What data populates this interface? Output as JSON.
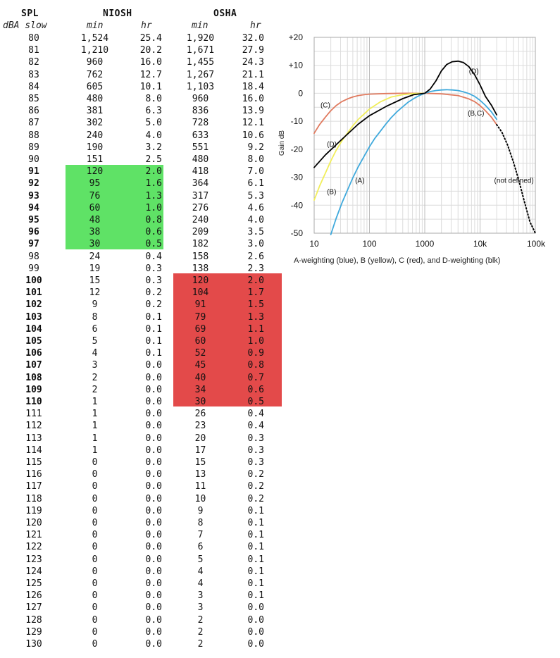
{
  "table": {
    "headers": {
      "spl": "SPL",
      "niosh": "NIOSH",
      "osha": "OSHA"
    },
    "subheaders": {
      "spl": "dBA slow",
      "niosh_min": "min",
      "niosh_hr": "hr",
      "osha_min": "min",
      "osha_hr": "hr"
    },
    "rows": [
      {
        "spl": "80",
        "nmin": "1,524",
        "nhr": "25.4",
        "omin": "1,920",
        "ohr": "32.0",
        "bold": false
      },
      {
        "spl": "81",
        "nmin": "1,210",
        "nhr": "20.2",
        "omin": "1,671",
        "ohr": "27.9",
        "bold": false
      },
      {
        "spl": "82",
        "nmin": "960",
        "nhr": "16.0",
        "omin": "1,455",
        "ohr": "24.3",
        "bold": false
      },
      {
        "spl": "83",
        "nmin": "762",
        "nhr": "12.7",
        "omin": "1,267",
        "ohr": "21.1",
        "bold": false
      },
      {
        "spl": "84",
        "nmin": "605",
        "nhr": "10.1",
        "omin": "1,103",
        "ohr": "18.4",
        "bold": false
      },
      {
        "spl": "85",
        "nmin": "480",
        "nhr": "8.0",
        "omin": "960",
        "ohr": "16.0",
        "bold": false
      },
      {
        "spl": "86",
        "nmin": "381",
        "nhr": "6.3",
        "omin": "836",
        "ohr": "13.9",
        "bold": false
      },
      {
        "spl": "87",
        "nmin": "302",
        "nhr": "5.0",
        "omin": "728",
        "ohr": "12.1",
        "bold": false
      },
      {
        "spl": "88",
        "nmin": "240",
        "nhr": "4.0",
        "omin": "633",
        "ohr": "10.6",
        "bold": false
      },
      {
        "spl": "89",
        "nmin": "190",
        "nhr": "3.2",
        "omin": "551",
        "ohr": "9.2",
        "bold": false
      },
      {
        "spl": "90",
        "nmin": "151",
        "nhr": "2.5",
        "omin": "480",
        "ohr": "8.0",
        "bold": false
      },
      {
        "spl": "91",
        "nmin": "120",
        "nhr": "2.0",
        "omin": "418",
        "ohr": "7.0",
        "bold": true
      },
      {
        "spl": "92",
        "nmin": "95",
        "nhr": "1.6",
        "omin": "364",
        "ohr": "6.1",
        "bold": true
      },
      {
        "spl": "93",
        "nmin": "76",
        "nhr": "1.3",
        "omin": "317",
        "ohr": "5.3",
        "bold": true
      },
      {
        "spl": "94",
        "nmin": "60",
        "nhr": "1.0",
        "omin": "276",
        "ohr": "4.6",
        "bold": true
      },
      {
        "spl": "95",
        "nmin": "48",
        "nhr": "0.8",
        "omin": "240",
        "ohr": "4.0",
        "bold": true
      },
      {
        "spl": "96",
        "nmin": "38",
        "nhr": "0.6",
        "omin": "209",
        "ohr": "3.5",
        "bold": true
      },
      {
        "spl": "97",
        "nmin": "30",
        "nhr": "0.5",
        "omin": "182",
        "ohr": "3.0",
        "bold": true
      },
      {
        "spl": "98",
        "nmin": "24",
        "nhr": "0.4",
        "omin": "158",
        "ohr": "2.6",
        "bold": false
      },
      {
        "spl": "99",
        "nmin": "19",
        "nhr": "0.3",
        "omin": "138",
        "ohr": "2.3",
        "bold": false
      },
      {
        "spl": "100",
        "nmin": "15",
        "nhr": "0.3",
        "omin": "120",
        "ohr": "2.0",
        "bold": true
      },
      {
        "spl": "101",
        "nmin": "12",
        "nhr": "0.2",
        "omin": "104",
        "ohr": "1.7",
        "bold": true
      },
      {
        "spl": "102",
        "nmin": "9",
        "nhr": "0.2",
        "omin": "91",
        "ohr": "1.5",
        "bold": true
      },
      {
        "spl": "103",
        "nmin": "8",
        "nhr": "0.1",
        "omin": "79",
        "ohr": "1.3",
        "bold": true
      },
      {
        "spl": "104",
        "nmin": "6",
        "nhr": "0.1",
        "omin": "69",
        "ohr": "1.1",
        "bold": true
      },
      {
        "spl": "105",
        "nmin": "5",
        "nhr": "0.1",
        "omin": "60",
        "ohr": "1.0",
        "bold": true
      },
      {
        "spl": "106",
        "nmin": "4",
        "nhr": "0.1",
        "omin": "52",
        "ohr": "0.9",
        "bold": true
      },
      {
        "spl": "107",
        "nmin": "3",
        "nhr": "0.0",
        "omin": "45",
        "ohr": "0.8",
        "bold": true
      },
      {
        "spl": "108",
        "nmin": "2",
        "nhr": "0.0",
        "omin": "40",
        "ohr": "0.7",
        "bold": true
      },
      {
        "spl": "109",
        "nmin": "2",
        "nhr": "0.0",
        "omin": "34",
        "ohr": "0.6",
        "bold": true
      },
      {
        "spl": "110",
        "nmin": "1",
        "nhr": "0.0",
        "omin": "30",
        "ohr": "0.5",
        "bold": true
      },
      {
        "spl": "111",
        "nmin": "1",
        "nhr": "0.0",
        "omin": "26",
        "ohr": "0.4",
        "bold": false
      },
      {
        "spl": "112",
        "nmin": "1",
        "nhr": "0.0",
        "omin": "23",
        "ohr": "0.4",
        "bold": false
      },
      {
        "spl": "113",
        "nmin": "1",
        "nhr": "0.0",
        "omin": "20",
        "ohr": "0.3",
        "bold": false
      },
      {
        "spl": "114",
        "nmin": "1",
        "nhr": "0.0",
        "omin": "17",
        "ohr": "0.3",
        "bold": false
      },
      {
        "spl": "115",
        "nmin": "0",
        "nhr": "0.0",
        "omin": "15",
        "ohr": "0.3",
        "bold": false
      },
      {
        "spl": "116",
        "nmin": "0",
        "nhr": "0.0",
        "omin": "13",
        "ohr": "0.2",
        "bold": false
      },
      {
        "spl": "117",
        "nmin": "0",
        "nhr": "0.0",
        "omin": "11",
        "ohr": "0.2",
        "bold": false
      },
      {
        "spl": "118",
        "nmin": "0",
        "nhr": "0.0",
        "omin": "10",
        "ohr": "0.2",
        "bold": false
      },
      {
        "spl": "119",
        "nmin": "0",
        "nhr": "0.0",
        "omin": "9",
        "ohr": "0.1",
        "bold": false
      },
      {
        "spl": "120",
        "nmin": "0",
        "nhr": "0.0",
        "omin": "8",
        "ohr": "0.1",
        "bold": false
      },
      {
        "spl": "121",
        "nmin": "0",
        "nhr": "0.0",
        "omin": "7",
        "ohr": "0.1",
        "bold": false
      },
      {
        "spl": "122",
        "nmin": "0",
        "nhr": "0.0",
        "omin": "6",
        "ohr": "0.1",
        "bold": false
      },
      {
        "spl": "123",
        "nmin": "0",
        "nhr": "0.0",
        "omin": "5",
        "ohr": "0.1",
        "bold": false
      },
      {
        "spl": "124",
        "nmin": "0",
        "nhr": "0.0",
        "omin": "4",
        "ohr": "0.1",
        "bold": false
      },
      {
        "spl": "125",
        "nmin": "0",
        "nhr": "0.0",
        "omin": "4",
        "ohr": "0.1",
        "bold": false
      },
      {
        "spl": "126",
        "nmin": "0",
        "nhr": "0.0",
        "omin": "3",
        "ohr": "0.1",
        "bold": false
      },
      {
        "spl": "127",
        "nmin": "0",
        "nhr": "0.0",
        "omin": "3",
        "ohr": "0.0",
        "bold": false
      },
      {
        "spl": "128",
        "nmin": "0",
        "nhr": "0.0",
        "omin": "2",
        "ohr": "0.0",
        "bold": false
      },
      {
        "spl": "129",
        "nmin": "0",
        "nhr": "0.0",
        "omin": "2",
        "ohr": "0.0",
        "bold": false
      },
      {
        "spl": "130",
        "nmin": "0",
        "nhr": "0.0",
        "omin": "2",
        "ohr": "0.0",
        "bold": false
      }
    ],
    "highlight_green": {
      "column": "niosh",
      "from_spl": "91",
      "to_spl": "97",
      "color": "#5fe266"
    },
    "highlight_red": {
      "column": "osha",
      "from_spl": "100",
      "to_spl": "110",
      "color": "#e34a4a"
    }
  },
  "chart_data": {
    "type": "line",
    "xscale": "log",
    "xlim": [
      10,
      100000
    ],
    "ylim": [
      -50,
      20
    ],
    "xticks": [
      10,
      100,
      1000,
      10000,
      100000
    ],
    "xtick_labels": [
      "10",
      "100",
      "1000",
      "10k",
      "100k"
    ],
    "yticks": [
      20,
      10,
      0,
      -10,
      -20,
      -30,
      -40,
      -50
    ],
    "ytick_labels": [
      "+20",
      "+10",
      "0",
      "-10",
      "-20",
      "-30",
      "-40",
      "-50"
    ],
    "ylabel": "Gain dB",
    "caption": "A-weighting (blue), B (yellow), C (red), and D-weighting (blk)",
    "grid": true,
    "series": [
      {
        "label": "(C)",
        "color": "#e07a5f",
        "points": [
          [
            10,
            -14.3
          ],
          [
            12.5,
            -11.2
          ],
          [
            16,
            -8.5
          ],
          [
            20,
            -6.2
          ],
          [
            25,
            -4.4
          ],
          [
            31.5,
            -3.0
          ],
          [
            40,
            -2.0
          ],
          [
            50,
            -1.3
          ],
          [
            63,
            -0.8
          ],
          [
            80,
            -0.5
          ],
          [
            100,
            -0.3
          ],
          [
            200,
            -0.1
          ],
          [
            400,
            0
          ],
          [
            1000,
            0
          ],
          [
            2000,
            -0.2
          ],
          [
            4000,
            -0.8
          ],
          [
            6300,
            -2.0
          ],
          [
            8000,
            -3.0
          ],
          [
            10000,
            -4.4
          ],
          [
            12500,
            -6.2
          ],
          [
            16000,
            -8.5
          ],
          [
            20000,
            -11.2
          ]
        ]
      },
      {
        "label": "(B)",
        "color": "#f1ee5a",
        "points": [
          [
            10,
            -38.2
          ],
          [
            12.5,
            -33.2
          ],
          [
            16,
            -28.5
          ],
          [
            20,
            -24.2
          ],
          [
            25,
            -20.4
          ],
          [
            31.5,
            -17.1
          ],
          [
            40,
            -14.2
          ],
          [
            50,
            -11.6
          ],
          [
            63,
            -9.3
          ],
          [
            80,
            -7.4
          ],
          [
            100,
            -5.6
          ],
          [
            160,
            -3.0
          ],
          [
            250,
            -1.3
          ],
          [
            400,
            -0.5
          ],
          [
            630,
            -0.1
          ],
          [
            1000,
            0
          ]
        ]
      },
      {
        "label": "(A)",
        "color": "#3fa9dc",
        "points": [
          [
            20,
            -50.5
          ],
          [
            25,
            -44.7
          ],
          [
            31.5,
            -39.4
          ],
          [
            40,
            -34.6
          ],
          [
            50,
            -30.2
          ],
          [
            63,
            -26.2
          ],
          [
            80,
            -22.5
          ],
          [
            100,
            -19.1
          ],
          [
            125,
            -16.1
          ],
          [
            160,
            -13.4
          ],
          [
            200,
            -10.9
          ],
          [
            250,
            -8.6
          ],
          [
            315,
            -6.6
          ],
          [
            400,
            -4.8
          ],
          [
            500,
            -3.2
          ],
          [
            630,
            -1.9
          ],
          [
            800,
            -0.8
          ],
          [
            1000,
            0
          ],
          [
            1250,
            0.6
          ],
          [
            1600,
            1.0
          ],
          [
            2000,
            1.2
          ],
          [
            2500,
            1.3
          ],
          [
            3150,
            1.2
          ],
          [
            4000,
            1.0
          ],
          [
            5000,
            0.5
          ],
          [
            6300,
            -0.1
          ],
          [
            8000,
            -1.1
          ],
          [
            10000,
            -2.5
          ],
          [
            12500,
            -4.3
          ],
          [
            16000,
            -6.6
          ],
          [
            20000,
            -9.3
          ]
        ]
      },
      {
        "label": "(D)",
        "color": "#000000",
        "points": [
          [
            10,
            -26.5
          ],
          [
            16,
            -22
          ],
          [
            31.5,
            -16.5
          ],
          [
            63,
            -11
          ],
          [
            100,
            -8
          ],
          [
            200,
            -4.7
          ],
          [
            400,
            -1.9
          ],
          [
            630,
            -0.5
          ],
          [
            1000,
            0
          ],
          [
            1250,
            1.5
          ],
          [
            1600,
            4.5
          ],
          [
            2000,
            8
          ],
          [
            2500,
            10.3
          ],
          [
            3150,
            11.3
          ],
          [
            4000,
            11.5
          ],
          [
            5000,
            11
          ],
          [
            6300,
            9.5
          ],
          [
            8000,
            6.6
          ],
          [
            10000,
            3
          ],
          [
            12500,
            -1.1
          ],
          [
            16000,
            -4.2
          ],
          [
            20000,
            -7.7
          ]
        ]
      },
      {
        "label": "(not defined)",
        "color": "#000000",
        "dotted": true,
        "points": [
          [
            20000,
            -11.2
          ],
          [
            25000,
            -14
          ],
          [
            31500,
            -18.5
          ],
          [
            40000,
            -24.5
          ],
          [
            50000,
            -31
          ],
          [
            63000,
            -38.5
          ],
          [
            80000,
            -46
          ],
          [
            100000,
            -50
          ]
        ]
      }
    ],
    "annotations": [
      {
        "text": "(D)",
        "x": 6300,
        "y": 7
      },
      {
        "text": "(C)",
        "x": 13,
        "y": -5
      },
      {
        "text": "(B,C)",
        "x": 6000,
        "y": -8
      },
      {
        "text": "(D)",
        "x": 17,
        "y": -19
      },
      {
        "text": "(A)",
        "x": 55,
        "y": -32
      },
      {
        "text": "(B)",
        "x": 17,
        "y": -36
      },
      {
        "text": "(not defined)",
        "x": 18000,
        "y": -32
      }
    ]
  }
}
